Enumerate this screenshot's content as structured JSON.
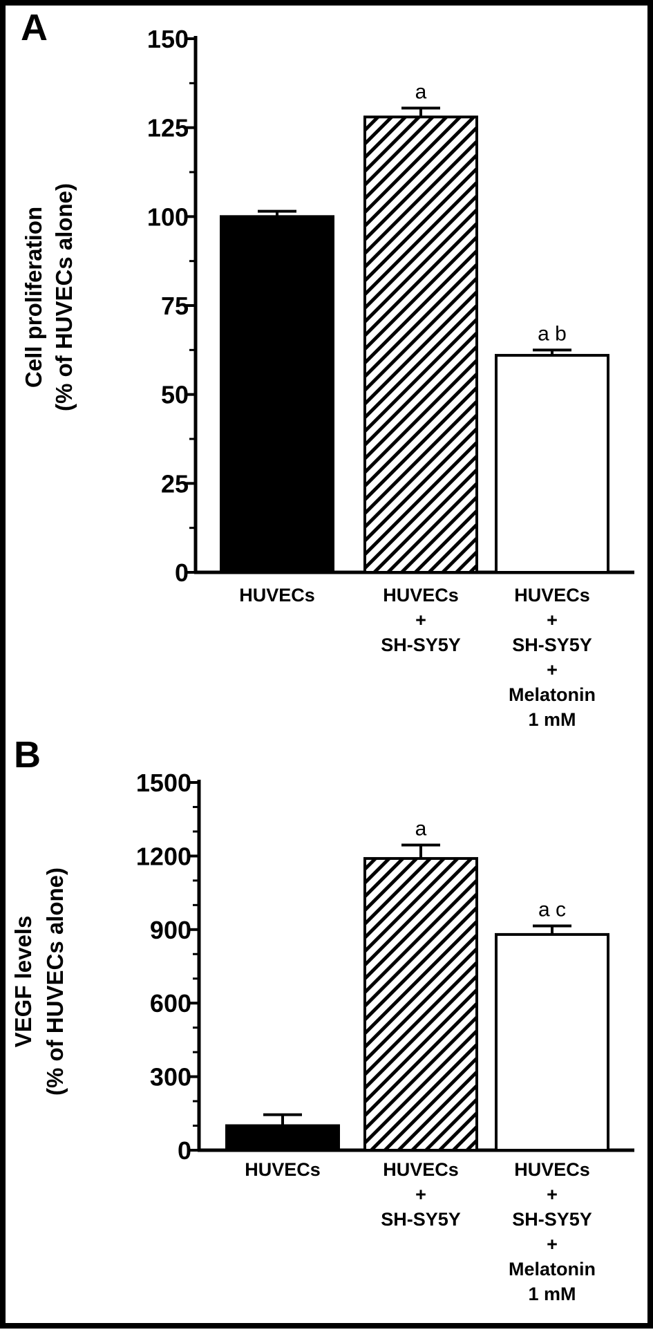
{
  "panels": [
    {
      "letter": "A",
      "title_line1": "Cell proliferation",
      "title_line2": "(% of HUVECs alone)"
    },
    {
      "letter": "B",
      "title_line1": "VEGF levels",
      "title_line2": "(% of HUVECs alone)"
    }
  ],
  "chart_data": [
    {
      "type": "bar",
      "panel": "A",
      "ylabel": "Cell proliferation (% of HUVECs alone)",
      "ylim": [
        0,
        150
      ],
      "yticks": [
        0,
        25,
        50,
        75,
        100,
        125,
        150
      ],
      "minor_ticks_per_major": 1,
      "categories": [
        [
          "HUVECs"
        ],
        [
          "HUVECs",
          "+",
          "SH-SY5Y"
        ],
        [
          "HUVECs",
          "+",
          "SH-SY5Y",
          "+",
          "Melatonin",
          "1 mM"
        ]
      ],
      "values": [
        100,
        128,
        61
      ],
      "errors": [
        1.5,
        2.5,
        1.5
      ],
      "fills": [
        "solid",
        "hatched",
        "white"
      ],
      "annotations": [
        "",
        "a",
        "a b"
      ]
    },
    {
      "type": "bar",
      "panel": "B",
      "ylabel": "VEGF levels (% of HUVECs alone)",
      "ylim": [
        0,
        1500
      ],
      "yticks": [
        0,
        300,
        600,
        900,
        1200,
        1500
      ],
      "minor_ticks_per_major": 2,
      "categories": [
        [
          "HUVECs"
        ],
        [
          "HUVECs",
          "+",
          "SH-SY5Y"
        ],
        [
          "HUVECs",
          "+",
          "SH-SY5Y",
          "+",
          "Melatonin",
          "1 mM"
        ]
      ],
      "values": [
        100,
        1190,
        880
      ],
      "errors": [
        45,
        55,
        35
      ],
      "fills": [
        "solid",
        "hatched",
        "white"
      ],
      "annotations": [
        "",
        "a",
        "a c"
      ]
    }
  ]
}
